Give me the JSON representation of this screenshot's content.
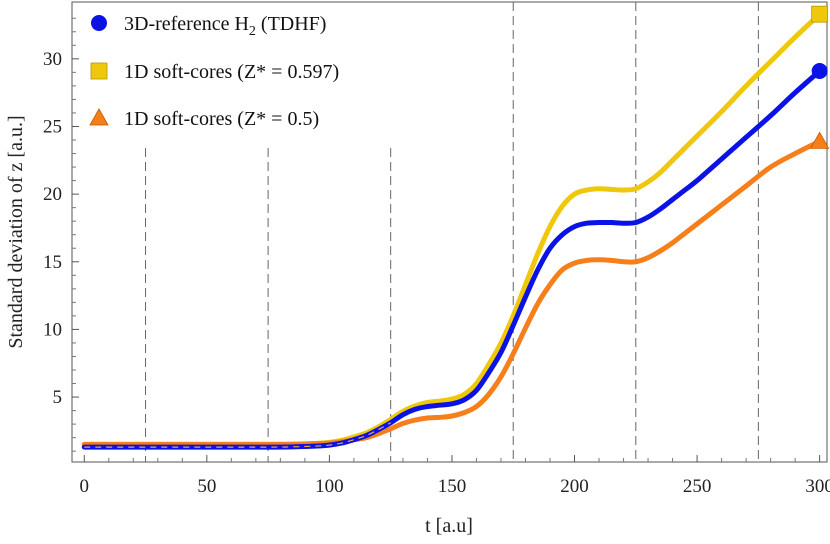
{
  "chart_data": {
    "type": "line",
    "xlabel": "t  [a.u]",
    "ylabel": "Standard deviation  of  z   [a.u.]",
    "xlim": [
      -5,
      303
    ],
    "ylim": [
      0.2,
      34.2
    ],
    "xticks": [
      0,
      50,
      100,
      150,
      200,
      250,
      300
    ],
    "yticks": [
      5,
      10,
      15,
      20,
      25,
      30
    ],
    "vlines": [
      25,
      75,
      125,
      175,
      225,
      275
    ],
    "legend_position": "top-left",
    "series": [
      {
        "name": "3D-reference H",
        "sub": "2",
        "suffix": " (TDHF)",
        "color": "#0a12e6",
        "marker": "circle",
        "t": [
          0,
          25,
          50,
          75,
          85,
          95,
          100,
          105,
          110,
          115,
          120,
          125,
          130,
          135,
          140,
          145,
          150,
          155,
          160,
          165,
          170,
          175,
          180,
          185,
          190,
          195,
          200,
          205,
          210,
          215,
          220,
          225,
          230,
          235,
          240,
          245,
          250,
          260,
          270,
          280,
          290,
          300
        ],
        "values": [
          1.3,
          1.3,
          1.3,
          1.3,
          1.32,
          1.38,
          1.45,
          1.6,
          1.85,
          2.15,
          2.6,
          3.1,
          3.7,
          4.1,
          4.3,
          4.4,
          4.5,
          4.8,
          5.5,
          6.8,
          8.3,
          10.3,
          12.4,
          14.4,
          16.0,
          17.0,
          17.6,
          17.85,
          17.9,
          17.9,
          17.85,
          17.9,
          18.3,
          18.9,
          19.6,
          20.3,
          21.0,
          22.6,
          24.2,
          25.8,
          27.5,
          29.1
        ]
      },
      {
        "name": "1D soft-cores (Z* = 0.597)",
        "color": "#efc80b",
        "marker": "square",
        "t": [
          0,
          25,
          50,
          75,
          85,
          95,
          100,
          105,
          110,
          115,
          120,
          125,
          130,
          135,
          140,
          145,
          150,
          155,
          160,
          165,
          170,
          175,
          180,
          185,
          190,
          195,
          200,
          205,
          210,
          215,
          220,
          225,
          230,
          235,
          240,
          245,
          250,
          260,
          270,
          280,
          290,
          300
        ],
        "values": [
          1.5,
          1.5,
          1.5,
          1.5,
          1.52,
          1.58,
          1.65,
          1.8,
          2.05,
          2.35,
          2.8,
          3.35,
          3.95,
          4.35,
          4.6,
          4.7,
          4.85,
          5.2,
          6.0,
          7.4,
          9.0,
          11.0,
          13.3,
          15.6,
          17.6,
          19.1,
          20.0,
          20.3,
          20.4,
          20.35,
          20.3,
          20.4,
          20.9,
          21.6,
          22.5,
          23.4,
          24.3,
          26.1,
          28.0,
          29.8,
          31.6,
          33.3
        ]
      },
      {
        "name": "1D soft-cores (Z* = 0.5)",
        "color": "#f57f1b",
        "marker": "triangle",
        "t": [
          0,
          25,
          50,
          75,
          85,
          95,
          100,
          105,
          110,
          115,
          120,
          125,
          130,
          135,
          140,
          145,
          150,
          155,
          160,
          165,
          170,
          175,
          180,
          185,
          190,
          195,
          200,
          205,
          210,
          215,
          220,
          225,
          230,
          235,
          240,
          245,
          250,
          260,
          270,
          280,
          290,
          300
        ],
        "values": [
          1.5,
          1.5,
          1.5,
          1.5,
          1.51,
          1.56,
          1.6,
          1.7,
          1.85,
          2.0,
          2.3,
          2.65,
          3.05,
          3.3,
          3.45,
          3.5,
          3.6,
          3.85,
          4.3,
          5.2,
          6.5,
          8.2,
          10.1,
          11.9,
          13.3,
          14.4,
          14.9,
          15.1,
          15.15,
          15.1,
          15.0,
          15.0,
          15.3,
          15.8,
          16.4,
          17.1,
          17.8,
          19.2,
          20.6,
          22.0,
          23.0,
          23.9
        ]
      }
    ]
  }
}
